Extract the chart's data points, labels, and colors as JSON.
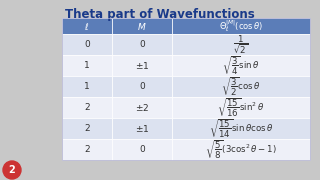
{
  "title": "Theta part of Wavefunctions",
  "title_fontsize": 8.5,
  "title_color": "#1a3a8a",
  "header": [
    "$\\ell$",
    "$M$",
    "$\\Theta_\\ell^{|M|}(\\cos\\theta)$"
  ],
  "rows": [
    [
      "0",
      "0",
      "$\\dfrac{1}{\\sqrt{2}}$"
    ],
    [
      "1",
      "$\\pm 1$",
      "$\\sqrt{\\dfrac{3}{4}}\\sin\\theta$"
    ],
    [
      "1",
      "0",
      "$\\sqrt{\\dfrac{3}{2}}\\cos\\theta$"
    ],
    [
      "2",
      "$\\pm 2$",
      "$\\sqrt{\\dfrac{15}{16}}\\sin^2\\theta$"
    ],
    [
      "2",
      "$\\pm 1$",
      "$\\sqrt{\\dfrac{15}{14}}\\sin\\theta\\cos\\theta$"
    ],
    [
      "2",
      "0",
      "$\\sqrt{\\dfrac{5}{8}}(3\\cos^2\\theta - 1)$"
    ]
  ],
  "header_bg": "#5b7db8",
  "header_text_color": "white",
  "row_bg_odd": "#dce2f0",
  "row_bg_even": "#eef0f8",
  "outer_bg": "#c8c8c8",
  "table_bg": "#ffffff",
  "font_color": "#333333"
}
